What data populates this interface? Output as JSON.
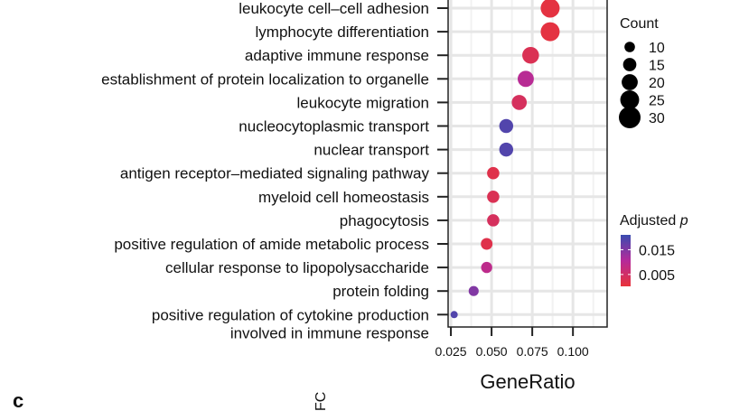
{
  "chart_data": {
    "type": "scatter",
    "xlabel": "GeneRatio",
    "ylabel": "",
    "xlim": [
      0.0233,
      0.121
    ],
    "xticks": [
      0.025,
      0.05,
      0.075,
      0.1
    ],
    "xtick_labels": [
      "0.025",
      "0.050",
      "0.075",
      "0.100"
    ],
    "grid": true,
    "legend_placement": "right",
    "categories": [
      "leukocyte cell–cell adhesion",
      "lymphocyte differentiation",
      "adaptive immune response",
      "establishment of protein localization to organelle",
      "leukocyte migration",
      "nucleocytoplasmic transport",
      "nuclear transport",
      "antigen receptor–mediated signaling pathway",
      "myeloid cell homeostasis",
      "phagocytosis",
      "positive regulation of amide metabolic process",
      "cellular response to lipopolysaccharide",
      "protein folding",
      "positive regulation of cytokine production\ninvolved in immune response"
    ],
    "gene_ratio": [
      0.086,
      0.086,
      0.074,
      0.071,
      0.067,
      0.059,
      0.059,
      0.051,
      0.051,
      0.051,
      0.047,
      0.047,
      0.039,
      0.027
    ],
    "count": [
      30,
      30,
      26,
      25,
      23,
      21,
      21,
      18,
      18,
      18,
      17,
      16,
      14,
      9
    ],
    "p_adjust": [
      0.001,
      0.001,
      0.003,
      0.01,
      0.004,
      0.019,
      0.019,
      0.002,
      0.003,
      0.004,
      0.002,
      0.009,
      0.015,
      0.019
    ],
    "size_legend": {
      "title": "Count",
      "breaks": [
        10,
        15,
        20,
        25,
        30
      ],
      "labels": [
        "10",
        "15",
        "20",
        "25",
        "30"
      ]
    },
    "color_legend": {
      "title": "Adjusted",
      "title_italic": "p",
      "range": [
        0.0002,
        0.021
      ],
      "breaks": [
        0.015,
        0.005
      ],
      "labels": [
        "0.015",
        "0.005"
      ],
      "low_color": "#e8333a",
      "mid_color": "#b52a9a",
      "high_color": "#3a4cb0"
    },
    "panel_label": "c",
    "next_panel_fragment": "FC"
  }
}
